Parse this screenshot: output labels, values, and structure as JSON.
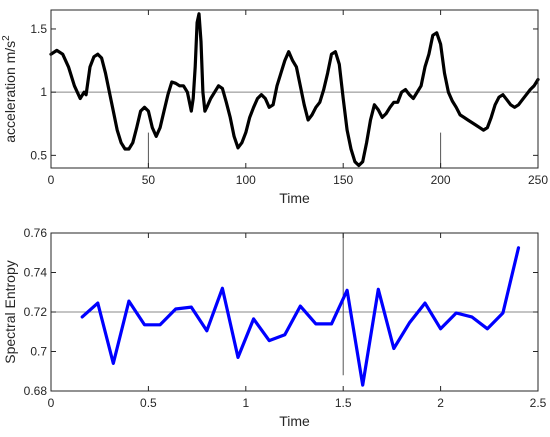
{
  "chart_data": [
    {
      "type": "line",
      "xlabel": "Time",
      "ylabel": "acceleration m/s",
      "ylabel_superscript": "2",
      "xlim": [
        0,
        250
      ],
      "ylim": [
        0.4,
        1.65
      ],
      "xticks": [
        0,
        50,
        100,
        150,
        200,
        250
      ],
      "yticks": [
        0.5,
        1,
        1.5
      ],
      "ytick_labels": [
        "0.5",
        "1",
        "1.5"
      ],
      "reference_line_y": 1,
      "marker_lines": [
        {
          "x": 50,
          "y_from": 0.4,
          "y_to": 0.68
        },
        {
          "x": 200,
          "y_from": 0.4,
          "y_to": 0.68
        }
      ],
      "series": [
        {
          "color": "#000000",
          "x": [
            0,
            3,
            6,
            9,
            12,
            15,
            17,
            18,
            20,
            22,
            24,
            26,
            28,
            30,
            32,
            34,
            36,
            38,
            40,
            42,
            44,
            46,
            48,
            50,
            52,
            54,
            56,
            58,
            60,
            62,
            64,
            66,
            68,
            70,
            72,
            73,
            74,
            75,
            76,
            77,
            78,
            79,
            80,
            82,
            84,
            86,
            88,
            90,
            92,
            94,
            96,
            98,
            100,
            102,
            104,
            106,
            108,
            110,
            112,
            114,
            116,
            118,
            120,
            122,
            124,
            126,
            128,
            130,
            132,
            134,
            136,
            138,
            140,
            142,
            144,
            146,
            148,
            150,
            152,
            154,
            156,
            158,
            160,
            162,
            164,
            166,
            168,
            170,
            172,
            174,
            176,
            178,
            180,
            182,
            184,
            186,
            188,
            190,
            192,
            194,
            196,
            198,
            200,
            202,
            204,
            206,
            208,
            210,
            212,
            214,
            216,
            218,
            220,
            222,
            224,
            226,
            228,
            230,
            232,
            234,
            236,
            238,
            240,
            242,
            244,
            246,
            248,
            250
          ],
          "values": [
            1.3,
            1.33,
            1.3,
            1.2,
            1.05,
            0.95,
            1.0,
            0.98,
            1.2,
            1.28,
            1.3,
            1.27,
            1.15,
            1.0,
            0.85,
            0.7,
            0.6,
            0.55,
            0.55,
            0.6,
            0.72,
            0.85,
            0.88,
            0.85,
            0.72,
            0.65,
            0.72,
            0.85,
            0.98,
            1.08,
            1.07,
            1.05,
            1.05,
            1.0,
            0.85,
            0.95,
            1.2,
            1.55,
            1.62,
            1.4,
            1.0,
            0.85,
            0.88,
            0.95,
            1.0,
            1.05,
            1.03,
            0.92,
            0.8,
            0.65,
            0.56,
            0.6,
            0.68,
            0.8,
            0.88,
            0.95,
            0.98,
            0.95,
            0.88,
            0.9,
            1.05,
            1.15,
            1.25,
            1.32,
            1.25,
            1.2,
            1.05,
            0.9,
            0.78,
            0.82,
            0.88,
            0.92,
            1.02,
            1.15,
            1.3,
            1.32,
            1.22,
            0.95,
            0.7,
            0.55,
            0.45,
            0.42,
            0.45,
            0.6,
            0.78,
            0.9,
            0.86,
            0.8,
            0.83,
            0.88,
            0.92,
            0.92,
            1.0,
            1.02,
            0.98,
            0.95,
            1.0,
            1.05,
            1.2,
            1.3,
            1.45,
            1.47,
            1.38,
            1.15,
            1.0,
            0.93,
            0.88,
            0.82,
            0.8,
            0.78,
            0.76,
            0.74,
            0.72,
            0.7,
            0.72,
            0.8,
            0.9,
            0.96,
            0.98,
            0.94,
            0.9,
            0.88,
            0.9,
            0.94,
            0.98,
            1.02,
            1.05,
            1.1
          ]
        }
      ]
    },
    {
      "type": "line",
      "xlabel": "Time",
      "ylabel": "Spectral Entropy",
      "xlim": [
        0,
        2.5
      ],
      "ylim": [
        0.68,
        0.76
      ],
      "xticks": [
        0,
        0.5,
        1,
        1.5,
        2,
        2.5
      ],
      "xtick_labels": [
        "0",
        "0.5",
        "1",
        "1.5",
        "2",
        "2.5"
      ],
      "yticks": [
        0.68,
        0.7,
        0.72,
        0.74,
        0.76
      ],
      "ytick_labels": [
        "0.68",
        "0.7",
        "0.72",
        "0.74",
        "0.76"
      ],
      "reference_line_y": 0.72,
      "marker_lines": [
        {
          "x": 1.5,
          "y_from": 0.688,
          "y_to": 0.76
        }
      ],
      "series": [
        {
          "color": "#0000ff",
          "x": [
            0.16,
            0.24,
            0.32,
            0.4,
            0.48,
            0.56,
            0.64,
            0.72,
            0.8,
            0.88,
            0.96,
            1.04,
            1.12,
            1.2,
            1.28,
            1.36,
            1.44,
            1.52,
            1.6,
            1.68,
            1.76,
            1.84,
            1.92,
            2.0,
            2.08,
            2.16,
            2.24,
            2.32,
            2.4
          ],
          "values": [
            0.7175,
            0.7245,
            0.694,
            0.7255,
            0.7135,
            0.7135,
            0.7215,
            0.7225,
            0.7105,
            0.732,
            0.697,
            0.7165,
            0.7055,
            0.7085,
            0.723,
            0.714,
            0.714,
            0.731,
            0.683,
            0.7315,
            0.7015,
            0.7145,
            0.7245,
            0.7115,
            0.7195,
            0.7175,
            0.7115,
            0.7195,
            0.7525
          ]
        }
      ]
    }
  ]
}
